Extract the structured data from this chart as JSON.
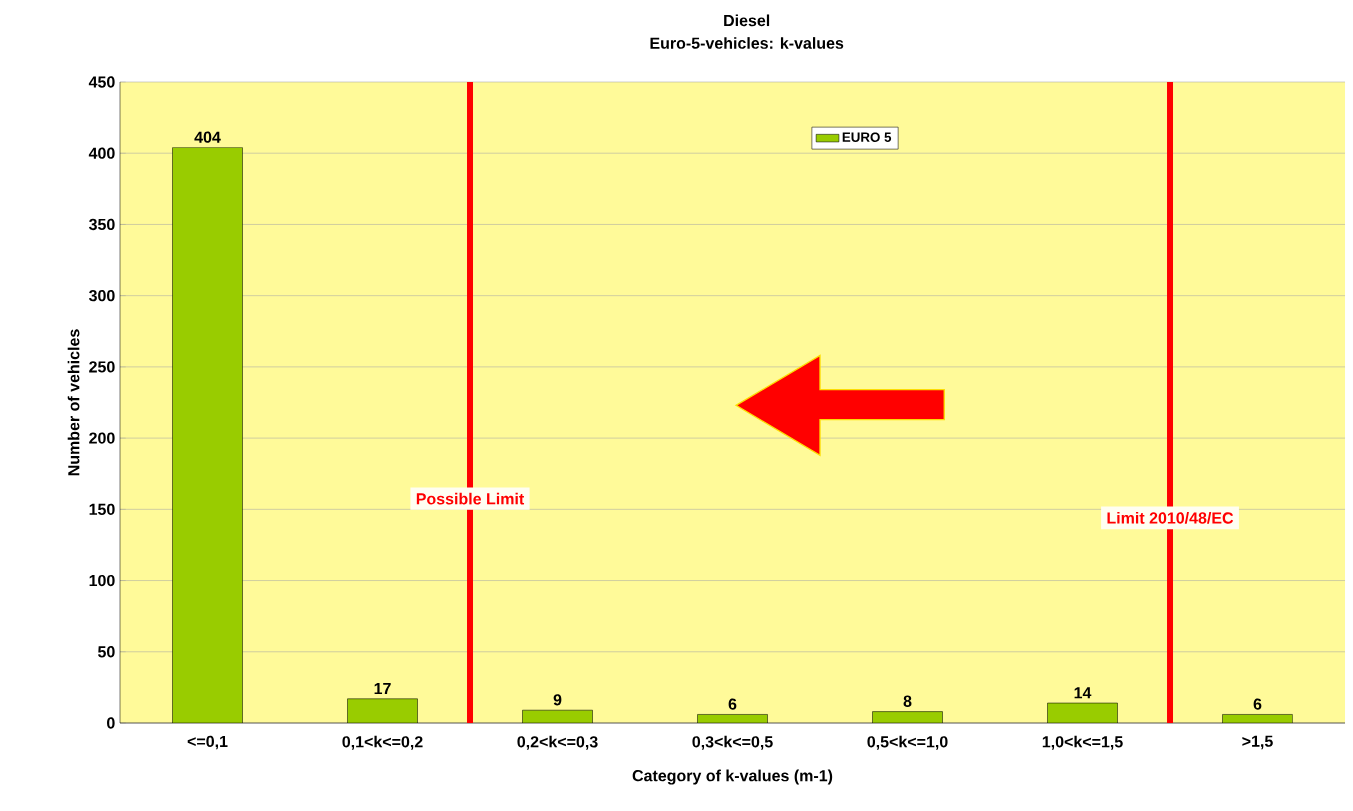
{
  "chart_data": {
    "type": "bar",
    "title": "Diesel",
    "subtitle": "Euro-5-vehicles:  k-values",
    "xlabel": "Category of k-values (m-1)",
    "ylabel": "Number of vehicles",
    "categories": [
      "<=0,1",
      "0,1<k<=0,2",
      "0,2<k<=0,3",
      "0,3<k<=0,5",
      "0,5<k<=1,0",
      "1,0<k<=1,5",
      ">1,5"
    ],
    "series": [
      {
        "name": "EURO 5",
        "color": "#99cc00",
        "values": [
          404,
          17,
          9,
          6,
          8,
          14,
          6
        ]
      }
    ],
    "ylim": [
      0,
      450
    ],
    "yticks": [
      0,
      50,
      100,
      150,
      200,
      250,
      300,
      350,
      400,
      450
    ],
    "grid": "y",
    "legend": "top",
    "data_labels": true,
    "annotations": [
      "Possible Limit",
      "Limit  2010/48/EC"
    ]
  }
}
